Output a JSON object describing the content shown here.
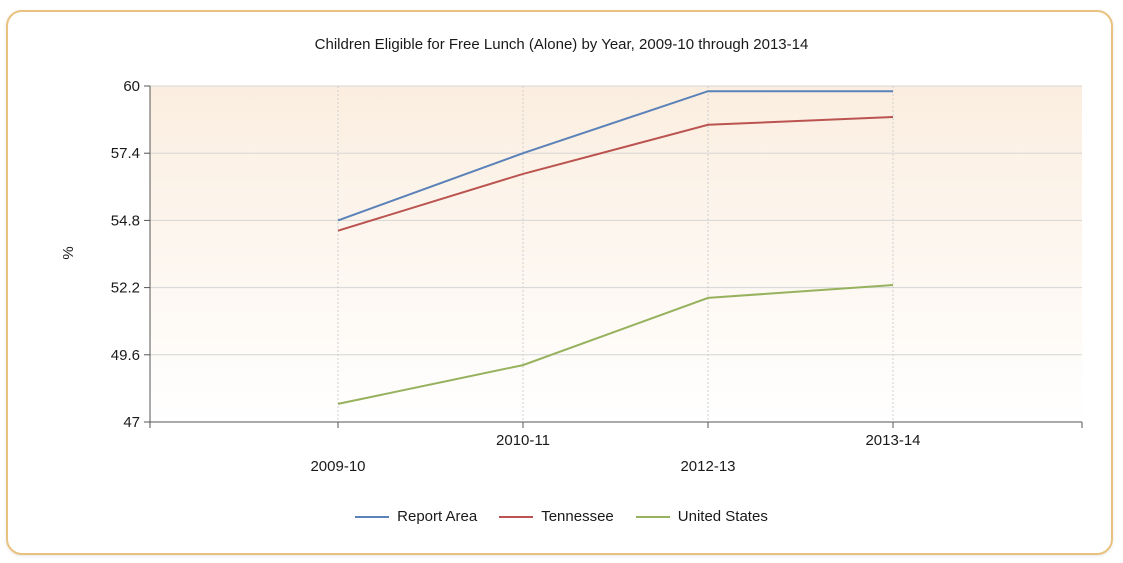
{
  "chart_data": {
    "type": "line",
    "title": "Children Eligible for Free Lunch (Alone) by Year, 2009-10 through 2013-14",
    "xlabel": "",
    "ylabel": "%",
    "categories": [
      "2009-10",
      "2010-11",
      "2012-13",
      "2013-14"
    ],
    "yticks": [
      "47",
      "49.6",
      "52.2",
      "54.8",
      "57.4",
      "60"
    ],
    "ylim": [
      47,
      60
    ],
    "series": [
      {
        "name": "Report Area",
        "color": "#5b82b8",
        "values": [
          54.8,
          57.4,
          59.8,
          59.8
        ]
      },
      {
        "name": "Tennessee",
        "color": "#bb5450",
        "values": [
          54.4,
          56.6,
          58.5,
          58.8
        ]
      },
      {
        "name": "United States",
        "color": "#97b25e",
        "values": [
          47.7,
          49.2,
          51.8,
          52.3
        ]
      }
    ],
    "grid": true,
    "legend_position": "bottom"
  }
}
